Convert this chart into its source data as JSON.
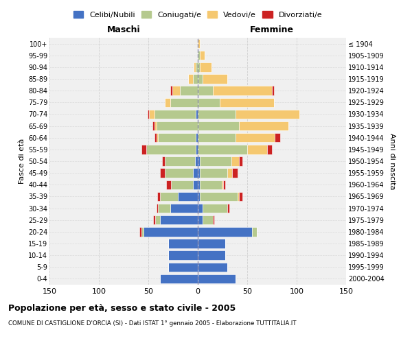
{
  "age_groups": [
    "0-4",
    "5-9",
    "10-14",
    "15-19",
    "20-24",
    "25-29",
    "30-34",
    "35-39",
    "40-44",
    "45-49",
    "50-54",
    "55-59",
    "60-64",
    "65-69",
    "70-74",
    "75-79",
    "80-84",
    "85-89",
    "90-94",
    "95-99",
    "100+"
  ],
  "birth_years": [
    "2000-2004",
    "1995-1999",
    "1990-1994",
    "1985-1989",
    "1980-1984",
    "1975-1979",
    "1970-1974",
    "1965-1969",
    "1960-1964",
    "1955-1959",
    "1950-1954",
    "1945-1949",
    "1940-1944",
    "1935-1939",
    "1930-1934",
    "1925-1929",
    "1920-1924",
    "1915-1919",
    "1910-1914",
    "1905-1909",
    "≤ 1904"
  ],
  "male": {
    "celibi": [
      38,
      30,
      30,
      30,
      55,
      38,
      28,
      20,
      5,
      5,
      3,
      2,
      2,
      0,
      2,
      0,
      0,
      0,
      0,
      0,
      0
    ],
    "coniugati": [
      0,
      0,
      0,
      0,
      2,
      5,
      12,
      18,
      22,
      28,
      30,
      50,
      38,
      42,
      42,
      28,
      18,
      5,
      2,
      0,
      0
    ],
    "vedovi": [
      0,
      0,
      0,
      0,
      0,
      0,
      0,
      0,
      0,
      0,
      0,
      0,
      2,
      2,
      5,
      5,
      8,
      5,
      2,
      0,
      0
    ],
    "divorziati": [
      0,
      0,
      0,
      0,
      2,
      2,
      2,
      3,
      5,
      5,
      3,
      5,
      2,
      2,
      2,
      0,
      2,
      0,
      0,
      0,
      0
    ]
  },
  "female": {
    "nubili": [
      38,
      30,
      28,
      28,
      55,
      5,
      5,
      2,
      2,
      2,
      2,
      0,
      0,
      0,
      0,
      0,
      0,
      0,
      0,
      0,
      0
    ],
    "coniugate": [
      0,
      0,
      0,
      0,
      5,
      10,
      25,
      38,
      22,
      28,
      32,
      50,
      38,
      42,
      38,
      22,
      15,
      5,
      2,
      2,
      0
    ],
    "vedove": [
      0,
      0,
      0,
      0,
      0,
      0,
      0,
      2,
      2,
      5,
      8,
      20,
      40,
      50,
      65,
      55,
      60,
      25,
      12,
      5,
      2
    ],
    "divorziate": [
      0,
      0,
      0,
      0,
      0,
      2,
      2,
      3,
      2,
      5,
      3,
      5,
      5,
      0,
      0,
      0,
      2,
      0,
      0,
      0,
      0
    ]
  },
  "colors": {
    "celibi": "#4472C4",
    "coniugati": "#b5c98e",
    "vedovi": "#f5c870",
    "divorziati": "#cc2222"
  },
  "title": "Popolazione per età, sesso e stato civile - 2005",
  "subtitle": "COMUNE DI CASTIGLIONE D'ORCIA (SI) - Dati ISTAT 1° gennaio 2005 - Elaborazione TUTTITALIA.IT",
  "xlabel_left": "Maschi",
  "xlabel_right": "Femmine",
  "ylabel_left": "Fasce di età",
  "ylabel_right": "Anni di nascita",
  "xlim": 150,
  "bg_color": "#f0f0f0",
  "grid_color": "#cccccc"
}
